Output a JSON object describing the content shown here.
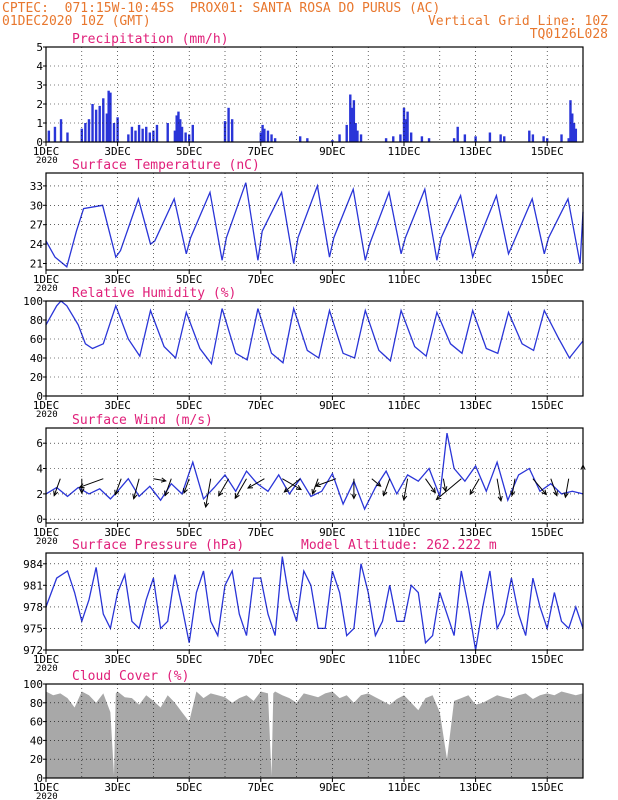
{
  "header": {
    "left_line1": "CPTEC:  071:15W-10:45S  PROX01: SANTA ROSA DO PURUS (AC)",
    "left_line2": "01DEC2020 10Z (GMT)",
    "right_line2": "Vertical Grid Line: 10Z",
    "right_line3": "TQ0126L028"
  },
  "colors": {
    "header_text": "#e8772e",
    "panel_title": "#e0207a",
    "series_line": "#2a35d8",
    "precip_bars": "#2a35d8",
    "cloud_fill": "#a8a8a8",
    "wind_arrows": "#000000",
    "grid": "#000000"
  },
  "x_axis": {
    "start": "01DEC2020 10Z",
    "days_span": 15,
    "tick_labels": [
      "1DEC",
      "3DEC",
      "5DEC",
      "7DEC",
      "9DEC",
      "11DEC",
      "13DEC",
      "15DEC"
    ],
    "tick_days": [
      0,
      2,
      4,
      6,
      8,
      10,
      12,
      14
    ],
    "year_label": "2020"
  },
  "chart_data": [
    {
      "type": "bar",
      "title": "Precipitation (mm/h)",
      "ylim": [
        0,
        5
      ],
      "yticks": [
        0,
        1,
        2,
        3,
        4,
        5
      ],
      "x": [
        0.08,
        0.25,
        0.42,
        0.6,
        1.0,
        1.1,
        1.2,
        1.3,
        1.4,
        1.5,
        1.6,
        1.7,
        1.75,
        1.8,
        1.9,
        2.0,
        2.3,
        2.4,
        2.5,
        2.6,
        2.7,
        2.8,
        2.9,
        3.0,
        3.1,
        3.4,
        3.6,
        3.65,
        3.7,
        3.75,
        3.8,
        3.9,
        4.0,
        4.1,
        5.0,
        5.1,
        5.2,
        6.0,
        6.05,
        6.1,
        6.2,
        6.3,
        6.4,
        7.1,
        7.3,
        8.0,
        8.2,
        8.4,
        8.5,
        8.55,
        8.6,
        8.65,
        8.7,
        8.8,
        9.5,
        9.7,
        9.9,
        10.0,
        10.05,
        10.1,
        10.2,
        10.5,
        10.7,
        11.4,
        11.5,
        11.7,
        12.0,
        12.4,
        12.7,
        12.8,
        13.5,
        13.6,
        13.9,
        14.0,
        14.4,
        14.6,
        14.65,
        14.7,
        14.75,
        14.8
      ],
      "values": [
        0.6,
        0.8,
        1.2,
        0.5,
        0.7,
        1.0,
        1.2,
        2.0,
        1.7,
        1.9,
        2.3,
        1.5,
        2.7,
        2.6,
        1.0,
        1.3,
        0.4,
        0.8,
        0.6,
        0.9,
        0.7,
        0.8,
        0.5,
        0.6,
        0.9,
        1.0,
        0.6,
        1.4,
        1.6,
        1.2,
        0.8,
        0.5,
        0.4,
        0.9,
        1.1,
        1.8,
        1.2,
        0.5,
        0.9,
        0.7,
        0.6,
        0.4,
        0.2,
        0.3,
        0.2,
        0.1,
        0.4,
        0.9,
        2.5,
        1.8,
        2.2,
        1.0,
        0.6,
        0.4,
        0.2,
        0.3,
        0.4,
        1.8,
        1.2,
        1.6,
        0.5,
        0.3,
        0.2,
        0.2,
        0.8,
        0.4,
        0.3,
        0.5,
        0.4,
        0.3,
        0.6,
        0.4,
        0.3,
        0.2,
        0.4,
        0.2,
        2.2,
        1.5,
        1.0,
        0.7
      ]
    },
    {
      "type": "line",
      "title": "Surface Temperature (nC)",
      "ylim": [
        20,
        35
      ],
      "yticks": [
        21,
        24,
        27,
        30,
        33
      ],
      "x": [
        0.0,
        0.25,
        0.58,
        0.85,
        1.05,
        1.58,
        1.95,
        2.08,
        2.58,
        2.92,
        3.04,
        3.58,
        3.92,
        4.04,
        4.58,
        4.92,
        5.04,
        5.58,
        5.92,
        6.04,
        6.58,
        6.92,
        7.04,
        7.58,
        7.92,
        8.04,
        8.58,
        8.92,
        9.04,
        9.58,
        9.92,
        10.04,
        10.58,
        10.92,
        11.04,
        11.58,
        11.92,
        12.04,
        12.58,
        12.92,
        13.04,
        13.58,
        13.92,
        14.04,
        14.58,
        14.92,
        15.0
      ],
      "values": [
        24.5,
        22,
        20.5,
        26,
        29.5,
        30,
        22,
        23,
        31,
        24,
        24.5,
        31,
        22.5,
        25,
        32,
        21.5,
        25,
        33.5,
        21.5,
        26,
        32,
        21,
        25,
        33,
        22,
        25,
        32.5,
        21.5,
        24,
        32,
        22.5,
        25,
        32.5,
        21.5,
        25,
        31.5,
        22,
        24,
        31.5,
        22.5,
        24,
        31,
        22.5,
        25,
        31,
        21,
        29
      ]
    },
    {
      "type": "line",
      "title": "Relative Humidity (%)",
      "ylim": [
        0,
        100
      ],
      "yticks": [
        0,
        20,
        40,
        60,
        80,
        100
      ],
      "x": [
        0.0,
        0.3,
        0.42,
        0.58,
        0.9,
        1.1,
        1.3,
        1.6,
        1.95,
        2.3,
        2.62,
        2.92,
        3.3,
        3.62,
        3.92,
        4.3,
        4.62,
        4.92,
        5.3,
        5.62,
        5.92,
        6.3,
        6.62,
        6.92,
        7.3,
        7.62,
        7.92,
        8.3,
        8.62,
        8.92,
        9.3,
        9.62,
        9.92,
        10.3,
        10.62,
        10.92,
        11.3,
        11.62,
        11.92,
        12.3,
        12.62,
        12.92,
        13.3,
        13.62,
        13.92,
        14.3,
        14.62,
        15.0
      ],
      "values": [
        75,
        95,
        100,
        95,
        75,
        55,
        50,
        55,
        95,
        60,
        42,
        90,
        52,
        40,
        88,
        50,
        34,
        92,
        45,
        38,
        92,
        45,
        35,
        92,
        48,
        40,
        90,
        45,
        40,
        90,
        48,
        37,
        90,
        52,
        42,
        88,
        55,
        45,
        90,
        50,
        45,
        88,
        55,
        48,
        90,
        62,
        40,
        58
      ]
    },
    {
      "type": "line",
      "title": "Surface Wind (m/s)",
      "ylim": [
        -0.3,
        7.2
      ],
      "yticks": [
        0,
        2,
        4,
        6
      ],
      "x": [
        0.0,
        0.3,
        0.6,
        0.9,
        1.2,
        1.5,
        1.8,
        2.0,
        2.3,
        2.6,
        2.9,
        3.2,
        3.5,
        3.8,
        4.1,
        4.4,
        4.7,
        5.0,
        5.3,
        5.6,
        5.9,
        6.2,
        6.5,
        6.8,
        7.1,
        7.4,
        7.7,
        8.0,
        8.3,
        8.6,
        8.9,
        9.2,
        9.5,
        9.8,
        10.1,
        10.4,
        10.7,
        11.0,
        11.2,
        11.4,
        11.7,
        12.0,
        12.3,
        12.6,
        12.9,
        13.2,
        13.5,
        13.8,
        14.1,
        14.4,
        14.7,
        15.0
      ],
      "values": [
        2.0,
        2.5,
        1.8,
        2.5,
        2.0,
        2.4,
        1.6,
        2.2,
        3.2,
        1.8,
        2.6,
        1.5,
        2.8,
        2.0,
        4.5,
        1.6,
        2.5,
        3.5,
        2.2,
        3.8,
        2.8,
        2.2,
        3.5,
        2.0,
        3.2,
        1.8,
        2.2,
        3.6,
        1.2,
        3.0,
        0.8,
        2.5,
        3.8,
        2.0,
        3.5,
        3.0,
        4.0,
        1.8,
        6.8,
        4.0,
        3.0,
        4.2,
        2.2,
        4.5,
        1.5,
        3.5,
        4.0,
        2.2,
        2.8,
        2.0,
        2.2,
        2.0
      ],
      "arrows": {
        "x": [
          0.4,
          1.0,
          1.6,
          2.1,
          2.6,
          3.0,
          3.5,
          4.0,
          4.6,
          5.1,
          5.6,
          6.1,
          6.6,
          7.1,
          7.6,
          8.1,
          8.6,
          9.1,
          9.6,
          10.1,
          10.6,
          11.1,
          11.6,
          12.1,
          12.6,
          13.1,
          13.6,
          14.1,
          14.6,
          15.0
        ],
        "speed": [
          2.0,
          1.6,
          2.8,
          1.9,
          2.3,
          1.4,
          2.0,
          1.7,
          3.2,
          2.2,
          2.5,
          2.1,
          2.4,
          2.3,
          1.8,
          2.4,
          2.2,
          1.3,
          2.0,
          2.4,
          1.9,
          1.4,
          3.6,
          2.0,
          2.5,
          1.9,
          2.3,
          2.0,
          2.1,
          1.5
        ],
        "direction_deg": [
          200,
          180,
          250,
          200,
          195,
          100,
          200,
          200,
          190,
          210,
          210,
          240,
          120,
          230,
          200,
          250,
          180,
          130,
          200,
          190,
          145,
          170,
          230,
          210,
          170,
          190,
          140,
          160,
          190,
          0
        ]
      }
    },
    {
      "type": "line",
      "title": "Surface Pressure (hPa)",
      "annotation": "Model Altitude: 262.222 m",
      "ylim": [
        972,
        985.5
      ],
      "yticks": [
        972,
        975,
        978,
        981,
        984
      ],
      "x": [
        0.0,
        0.3,
        0.6,
        0.8,
        1.0,
        1.2,
        1.4,
        1.6,
        1.8,
        2.0,
        2.2,
        2.4,
        2.6,
        2.8,
        3.0,
        3.2,
        3.4,
        3.6,
        3.8,
        4.0,
        4.2,
        4.4,
        4.6,
        4.8,
        5.0,
        5.2,
        5.4,
        5.6,
        5.8,
        6.0,
        6.2,
        6.4,
        6.6,
        6.8,
        7.0,
        7.2,
        7.4,
        7.6,
        7.8,
        8.0,
        8.2,
        8.4,
        8.6,
        8.8,
        9.0,
        9.2,
        9.4,
        9.6,
        9.8,
        10.0,
        10.2,
        10.4,
        10.6,
        10.8,
        11.0,
        11.2,
        11.4,
        11.6,
        11.8,
        12.0,
        12.2,
        12.4,
        12.6,
        12.8,
        13.0,
        13.2,
        13.4,
        13.6,
        13.8,
        14.0,
        14.2,
        14.4,
        14.6,
        14.8,
        15.0
      ],
      "values": [
        978,
        982,
        983,
        980,
        976,
        979,
        983.5,
        977,
        975,
        980,
        982.5,
        976,
        975,
        979,
        982,
        975,
        976,
        982.5,
        978,
        973,
        980,
        983,
        976,
        974,
        981,
        983,
        977,
        974,
        982,
        982,
        977,
        974,
        985,
        979,
        976,
        983,
        981,
        975,
        975,
        983,
        980,
        974,
        975,
        984,
        980,
        974,
        976,
        981,
        976,
        976,
        981,
        980,
        973,
        974,
        980,
        977,
        974,
        983,
        978,
        972,
        978,
        983,
        975,
        977,
        982,
        977,
        974,
        982,
        978,
        975,
        980,
        976,
        975,
        978,
        975
      ]
    },
    {
      "type": "area",
      "title": "Cloud Cover (%)",
      "ylim": [
        0,
        100
      ],
      "yticks": [
        0,
        20,
        40,
        60,
        80,
        100
      ],
      "x": [
        0.0,
        0.2,
        0.4,
        0.6,
        0.8,
        1.0,
        1.2,
        1.4,
        1.6,
        1.8,
        1.9,
        1.95,
        2.0,
        2.2,
        2.4,
        2.6,
        2.8,
        3.0,
        3.2,
        3.4,
        3.6,
        3.8,
        4.0,
        4.2,
        4.4,
        4.6,
        4.8,
        5.0,
        5.2,
        5.4,
        5.6,
        5.8,
        6.0,
        6.2,
        6.3,
        6.35,
        6.4,
        6.6,
        6.8,
        7.0,
        7.2,
        7.4,
        7.6,
        7.8,
        8.0,
        8.2,
        8.4,
        8.6,
        8.8,
        9.0,
        9.2,
        9.4,
        9.6,
        9.8,
        10.0,
        10.2,
        10.4,
        10.6,
        10.8,
        11.0,
        11.2,
        11.4,
        11.6,
        11.8,
        12.0,
        12.2,
        12.4,
        12.6,
        12.8,
        13.0,
        13.2,
        13.4,
        13.6,
        13.8,
        14.0,
        14.2,
        14.4,
        14.6,
        14.8,
        15.0
      ],
      "values": [
        92,
        88,
        90,
        85,
        75,
        92,
        88,
        80,
        90,
        70,
        3,
        90,
        92,
        86,
        85,
        78,
        88,
        82,
        75,
        88,
        80,
        70,
        60,
        92,
        85,
        90,
        88,
        86,
        80,
        85,
        88,
        82,
        92,
        90,
        2,
        90,
        92,
        88,
        85,
        80,
        90,
        88,
        86,
        90,
        92,
        85,
        88,
        80,
        88,
        90,
        86,
        82,
        78,
        84,
        88,
        80,
        72,
        85,
        88,
        70,
        20,
        82,
        85,
        88,
        78,
        80,
        84,
        88,
        86,
        84,
        88,
        90,
        84,
        88,
        90,
        88,
        92,
        90,
        88,
        90
      ]
    }
  ]
}
